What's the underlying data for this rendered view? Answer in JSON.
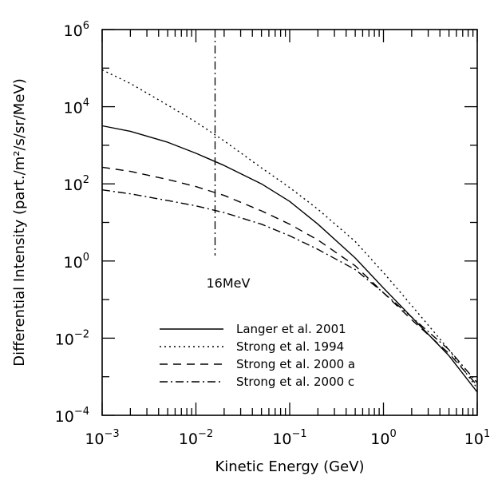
{
  "chart_data": {
    "type": "line",
    "title": "",
    "xlabel": "Kinetic Energy (GeV)",
    "ylabel": "Differential Intensity (part./m²/s/sr/MeV)",
    "xscale": "log",
    "yscale": "log",
    "xlim": [
      0.001,
      10
    ],
    "ylim": [
      0.0001,
      1000000
    ],
    "x_ticks": [
      {
        "base": "10",
        "exp": "−3"
      },
      {
        "base": "10",
        "exp": "−2"
      },
      {
        "base": "10",
        "exp": "−1"
      },
      {
        "base": "10",
        "exp": "0"
      },
      {
        "base": "10",
        "exp": "1"
      }
    ],
    "y_ticks": [
      {
        "base": "10",
        "exp": "−4"
      },
      {
        "base": "10",
        "exp": "−2"
      },
      {
        "base": "10",
        "exp": "0"
      },
      {
        "base": "10",
        "exp": "2"
      },
      {
        "base": "10",
        "exp": "4"
      },
      {
        "base": "10",
        "exp": "6"
      }
    ],
    "grid": false,
    "legend_position": "bottom-left",
    "annotations": [
      {
        "text": "16MeV",
        "x": 0.016
      }
    ],
    "series": [
      {
        "name": "Langer et al. 2001",
        "style": "solid",
        "color": "#000000",
        "x": [
          0.001,
          0.002,
          0.005,
          0.01,
          0.02,
          0.05,
          0.1,
          0.2,
          0.5,
          1,
          2,
          5,
          10
        ],
        "y": [
          3200,
          2300,
          1200,
          620,
          300,
          100,
          35,
          9,
          1.2,
          0.2,
          0.035,
          0.0035,
          0.0004
        ]
      },
      {
        "name": "Strong et al. 1994",
        "style": "dotted",
        "color": "#000000",
        "x": [
          0.001,
          0.002,
          0.005,
          0.01,
          0.02,
          0.05,
          0.1,
          0.2,
          0.5,
          1,
          2,
          5,
          10
        ],
        "y": [
          90000,
          40000,
          11000,
          4000,
          1300,
          260,
          80,
          22,
          3.2,
          0.5,
          0.07,
          0.005,
          0.0005
        ]
      },
      {
        "name": "Strong et al. 2000 a",
        "style": "dashed",
        "color": "#000000",
        "x": [
          0.001,
          0.002,
          0.005,
          0.01,
          0.02,
          0.05,
          0.1,
          0.2,
          0.5,
          1,
          2,
          5,
          10
        ],
        "y": [
          270,
          210,
          130,
          85,
          50,
          20,
          9,
          3.5,
          0.75,
          0.15,
          0.03,
          0.004,
          0.0006
        ]
      },
      {
        "name": "Strong et al. 2000 c",
        "style": "dashdot",
        "color": "#000000",
        "x": [
          0.001,
          0.002,
          0.005,
          0.01,
          0.02,
          0.05,
          0.1,
          0.2,
          0.5,
          1,
          2,
          5,
          10
        ],
        "y": [
          70,
          55,
          37,
          27,
          18,
          9,
          4.5,
          2,
          0.6,
          0.15,
          0.035,
          0.005,
          0.0007
        ]
      }
    ]
  }
}
